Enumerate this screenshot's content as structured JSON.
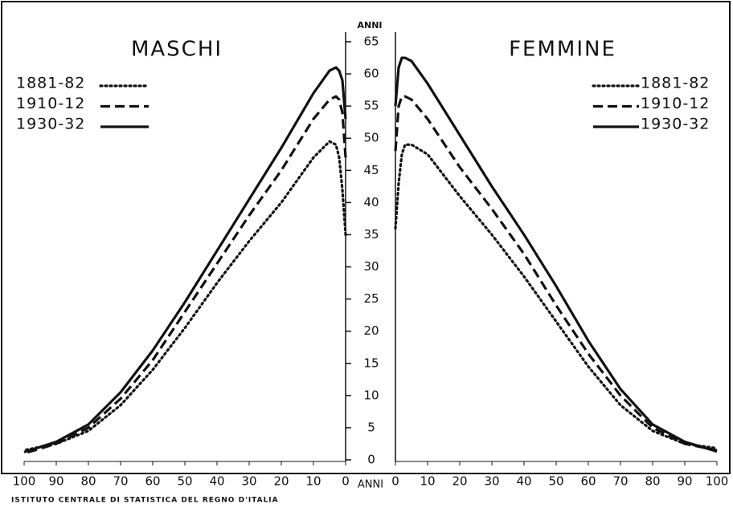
{
  "chart_data": [
    {
      "type": "line",
      "title": "MASCHI",
      "y_label": "ANNI",
      "x": [
        0,
        1,
        2,
        3,
        5,
        10,
        20,
        30,
        40,
        50,
        60,
        70,
        80,
        90,
        100
      ],
      "xlim": [
        0,
        100
      ],
      "xticks": [
        100,
        90,
        80,
        70,
        60,
        50,
        40,
        30,
        20,
        10,
        0
      ],
      "x_reversed": true,
      "ylim": [
        0,
        65
      ],
      "yticks": [
        0,
        5,
        10,
        15,
        20,
        25,
        30,
        35,
        40,
        45,
        50,
        55,
        60,
        65
      ],
      "legend": "upper left",
      "series": [
        {
          "name": "1881-82",
          "color": "#111",
          "style": "dotted",
          "values": [
            35,
            42,
            47,
            49,
            49.5,
            47,
            40,
            34,
            27.5,
            20.5,
            14,
            8.5,
            4.5,
            2.5,
            1.5
          ]
        },
        {
          "name": "1910-12",
          "color": "#111",
          "style": "dashed",
          "values": [
            47,
            54,
            56,
            56.5,
            56,
            53,
            45,
            38,
            30.5,
            23,
            15.5,
            9.5,
            5,
            2.5,
            1
          ]
        },
        {
          "name": "1930-32",
          "color": "#111",
          "style": "solid",
          "values": [
            53,
            59,
            60.5,
            61,
            60.5,
            57,
            48.5,
            40.5,
            32.5,
            24.5,
            17,
            10.5,
            5.5,
            2.8,
            1.2
          ]
        }
      ]
    },
    {
      "type": "line",
      "title": "FEMMINE",
      "x_label": "ANNI",
      "x": [
        0,
        1,
        2,
        3,
        5,
        10,
        20,
        30,
        40,
        50,
        60,
        70,
        80,
        90,
        100
      ],
      "xlim": [
        0,
        100
      ],
      "xticks": [
        0,
        10,
        20,
        30,
        40,
        50,
        60,
        70,
        80,
        90,
        100
      ],
      "x_reversed": false,
      "ylim": [
        0,
        65
      ],
      "legend": "upper right",
      "series": [
        {
          "name": "1881-82",
          "color": "#111",
          "style": "dotted",
          "values": [
            36,
            43,
            47.5,
            49,
            49,
            47.5,
            41,
            35,
            28.5,
            21.5,
            14.5,
            8.5,
            4.5,
            2.5,
            1.8
          ]
        },
        {
          "name": "1910-12",
          "color": "#111",
          "style": "dashed",
          "values": [
            48,
            55,
            56.5,
            56.5,
            56,
            53,
            45.5,
            39,
            32,
            24,
            16.5,
            10,
            5,
            2.5,
            1.5
          ]
        },
        {
          "name": "1930-32",
          "color": "#111",
          "style": "solid",
          "values": [
            55,
            61,
            62.5,
            62.5,
            62,
            58.5,
            50.5,
            42.5,
            35,
            27,
            18.5,
            11,
            5.5,
            2.8,
            1.3
          ]
        }
      ]
    }
  ],
  "source": "ISTITUTO CENTRALE DI STATISTICA DEL REGNO D'ITALIA"
}
